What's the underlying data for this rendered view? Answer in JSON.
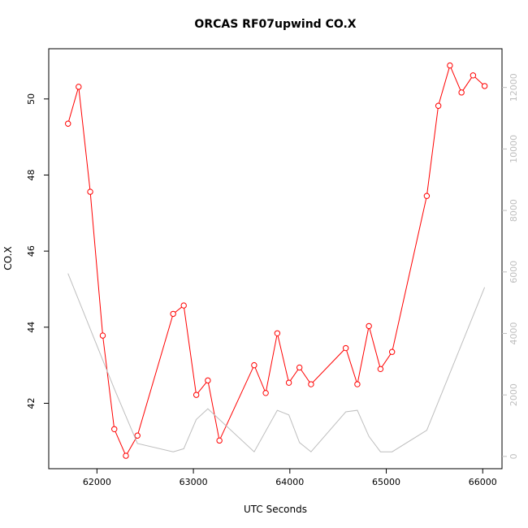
{
  "chart_data": {
    "type": "line",
    "title": "ORCAS RF07upwind CO.X",
    "xlabel": "UTC Seconds",
    "ylabel": "CO.X",
    "xlim": [
      61500,
      66200
    ],
    "ylim": [
      40.28,
      51.32
    ],
    "y2lim": [
      -400,
      13260
    ],
    "xticks": [
      62000,
      63000,
      64000,
      65000,
      66000
    ],
    "yticks": [
      42,
      44,
      46,
      48,
      50
    ],
    "y2ticks": [
      0,
      2000,
      4000,
      6000,
      8000,
      10000,
      12000
    ],
    "grid": false,
    "colors": {
      "primary": "#ff0000",
      "secondary": "#bebebe"
    },
    "series": [
      {
        "axis": "left",
        "x": [
          61700,
          61810,
          61930,
          62060,
          62180,
          62300,
          62420,
          62790,
          62900,
          63030,
          63150,
          63270,
          63630,
          63750,
          63870,
          63990,
          64100,
          64220,
          64580,
          64700,
          64820,
          64940,
          65060,
          65420,
          65540,
          65660,
          65780,
          65900,
          66020
        ],
        "values": [
          49.35,
          50.32,
          47.56,
          43.78,
          41.32,
          40.62,
          41.15,
          44.35,
          44.57,
          42.22,
          42.6,
          41.02,
          43.0,
          42.27,
          43.84,
          42.54,
          42.94,
          42.5,
          43.45,
          42.5,
          44.03,
          42.9,
          43.35,
          47.45,
          49.82,
          50.88,
          50.17,
          50.62,
          50.34
        ]
      },
      {
        "axis": "right",
        "x": [
          61700,
          62180,
          62420,
          62790,
          62900,
          63030,
          63150,
          63630,
          63870,
          63990,
          64100,
          64220,
          64580,
          64700,
          64820,
          64940,
          65060,
          65420,
          66020
        ],
        "values": [
          5950,
          2200,
          420,
          150,
          250,
          1200,
          1550,
          150,
          1500,
          1350,
          450,
          150,
          1450,
          1500,
          650,
          150,
          150,
          850,
          5500
        ]
      }
    ]
  }
}
